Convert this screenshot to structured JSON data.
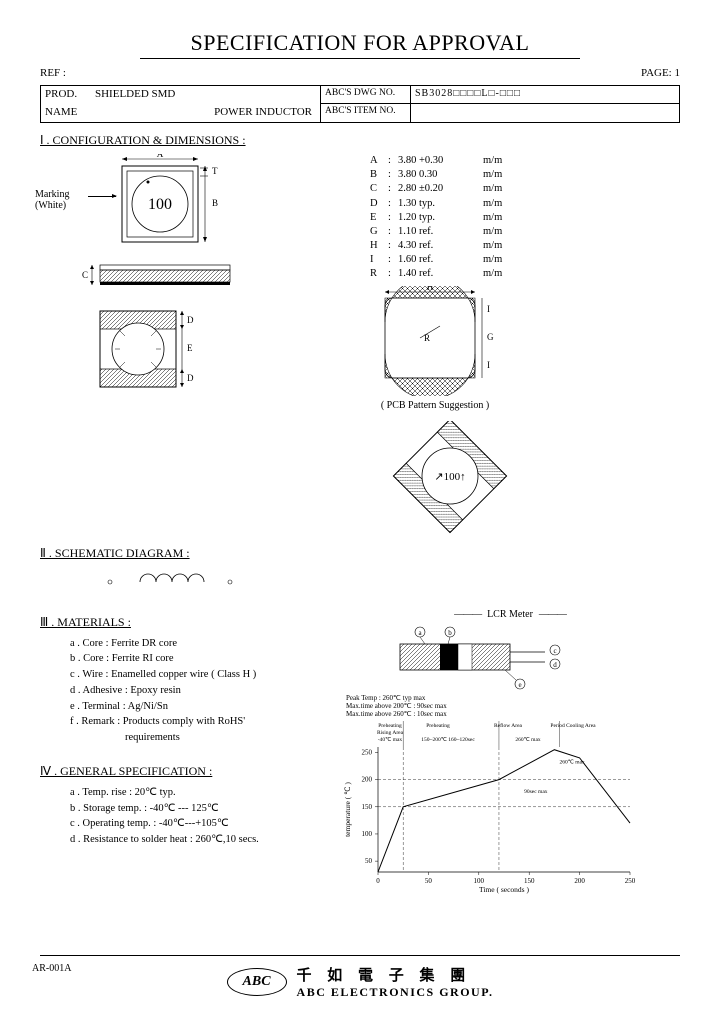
{
  "title": "SPECIFICATION FOR APPROVAL",
  "ref_label": "REF :",
  "page_label": "PAGE: 1",
  "header": {
    "prod_label": "PROD.",
    "name_label": "NAME",
    "prod_value": "SHIELDED SMD",
    "name_value": "POWER INDUCTOR",
    "dwg_label": "ABC'S DWG NO.",
    "item_label": "ABC'S ITEM NO.",
    "dwg_value": "SB3028□□□□L□-□□□",
    "item_value": ""
  },
  "sections": {
    "s1": "Ⅰ . CONFIGURATION & DIMENSIONS :",
    "s2": "Ⅱ . SCHEMATIC DIAGRAM :",
    "s3": "Ⅲ . MATERIALS :",
    "s4": "Ⅳ . GENERAL SPECIFICATION :"
  },
  "marking_label": "Marking",
  "marking_sub": "(White)",
  "marking_text": "100",
  "dims": [
    {
      "k": "A",
      "v": "3.80 +0.30",
      "u": "m/m"
    },
    {
      "k": "B",
      "v": "3.80  0.30",
      "u": "m/m"
    },
    {
      "k": "C",
      "v": "2.80 ±0.20",
      "u": "m/m"
    },
    {
      "k": "D",
      "v": "1.30  typ.",
      "u": "m/m"
    },
    {
      "k": "E",
      "v": "1.20  typ.",
      "u": "m/m"
    },
    {
      "k": "G",
      "v": "1.10  ref.",
      "u": "m/m"
    },
    {
      "k": "H",
      "v": "4.30  ref.",
      "u": "m/m"
    },
    {
      "k": "I",
      "v": "1.60  ref.",
      "u": "m/m"
    },
    {
      "k": "R",
      "v": "1.40  ref.",
      "u": "m/m"
    }
  ],
  "pcb_note": "( PCB Pattern Suggestion )",
  "materials": [
    "a . Core : Ferrite DR core",
    "b . Core : Ferrite RI core",
    "c . Wire : Enamelled copper wire ( Class H )",
    "d . Adhesive : Epoxy resin",
    "e . Terminal : Ag/Ni/Sn",
    "f . Remark : Products comply with RoHS'",
    "          requirements"
  ],
  "general": [
    "a . Temp. rise : 20℃ typ.",
    "b . Storage temp. : -40℃ --- 125℃",
    "c . Operating temp. : -40℃---+105℃",
    "d . Resistance to solder heat : 260℃,10 secs."
  ],
  "lcr_label": "LCR Meter",
  "reflow": {
    "peak": "Peak Temp : 260℃ typ max",
    "above200": "Max.time above 200℃ : 90sec max",
    "above260": "Max.time above 260℃ : 10sec max",
    "col1": "Preheating\nRising Area",
    "col2": "Preheating",
    "col3": "Reflow Area",
    "col4": "Period Cooling Area",
    "deg1": "-40℃ max",
    "deg2": "150~200℃ 160~120sec",
    "deg3": "260℃ max",
    "xlabel": "Time ( seconds )",
    "ylabel": "temperature ( ℃ )",
    "xticks": [
      0,
      50,
      100,
      150,
      200,
      250
    ],
    "yticks": [
      50,
      100,
      150,
      200,
      250
    ],
    "xlim": [
      0,
      250
    ],
    "ylim": [
      30,
      260
    ],
    "profile_points": [
      [
        0,
        30
      ],
      [
        25,
        150
      ],
      [
        120,
        200
      ],
      [
        175,
        255
      ],
      [
        200,
        240
      ],
      [
        250,
        120
      ]
    ],
    "dash_x": [
      25,
      120
    ],
    "dash_y": [
      150,
      200
    ],
    "colors": {
      "line": "#000",
      "grid": "#000",
      "bg": "#fff"
    }
  },
  "footer": {
    "logo": "ABC",
    "chinese": "千 如 電 子 集 團",
    "english": "ABC ELECTRONICS GROUP."
  },
  "form_no": "AR-001A",
  "svg": {
    "topview": {
      "A": "A",
      "B": "B",
      "T": "T",
      "marking": "100"
    },
    "sideview": {
      "C": "C"
    },
    "bottomview": {
      "D": "D",
      "E": "E"
    },
    "pcb": {
      "H": "H",
      "G": "G",
      "R": "R",
      "I": "I"
    }
  }
}
